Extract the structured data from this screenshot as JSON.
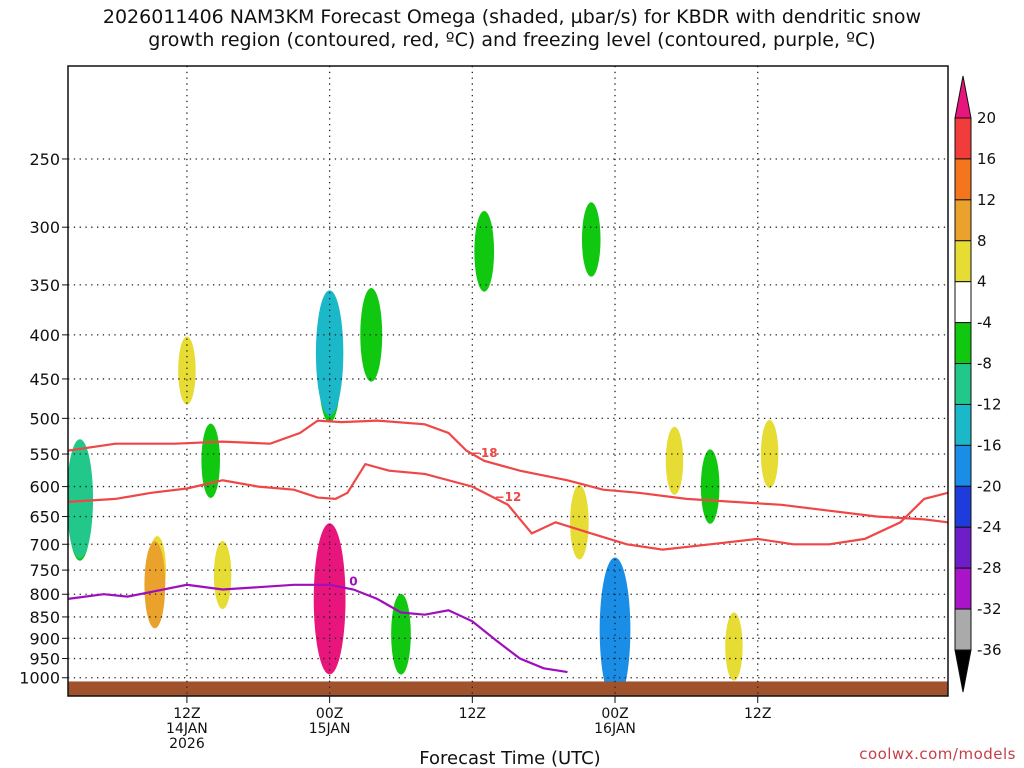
{
  "chart_data": {
    "type": "heatmap",
    "title_line1": "2026011406 NAM3KM Forecast Omega (shaded, µbar/s) for KBDR with dendritic snow",
    "title_line2": "growth region (contoured, red, ºC) and freezing level (contoured, purple, ºC)",
    "xlabel": "Forecast Time (UTC)",
    "ylabel": "",
    "y_scale": "log-pressure",
    "y_reversed": true,
    "xlim": [
      -10,
      64
    ],
    "ylim": [
      1050,
      195
    ],
    "grid": true,
    "x_ticks": [
      {
        "x": 0,
        "labels": [
          "12Z",
          "14JAN",
          "2026"
        ]
      },
      {
        "x": 12,
        "labels": [
          "00Z",
          "15JAN"
        ]
      },
      {
        "x": 24,
        "labels": [
          "12Z"
        ]
      },
      {
        "x": 36,
        "labels": [
          "00Z",
          "16JAN"
        ]
      },
      {
        "x": 48,
        "labels": [
          "12Z"
        ]
      }
    ],
    "y_ticks": [
      250,
      300,
      350,
      400,
      450,
      500,
      550,
      600,
      650,
      700,
      750,
      800,
      850,
      900,
      950,
      1000
    ],
    "colorbar": {
      "ticks": [
        20,
        16,
        12,
        8,
        4,
        -4,
        -8,
        -12,
        -16,
        -20,
        -24,
        -28,
        -32,
        -36
      ],
      "colors": [
        "#e8157c",
        "#f23c3c",
        "#f4761c",
        "#eaa22c",
        "#e6dc34",
        "#ffffff",
        "#10c810",
        "#22c88a",
        "#1ab8c8",
        "#1a8ee6",
        "#1e3cdc",
        "#6e1ec8",
        "#aa14c8",
        "#aaaaaa",
        "#000000"
      ]
    },
    "omega_cells": [
      {
        "x": -9,
        "p": 640,
        "value": -10,
        "color": "#10c810"
      },
      {
        "x": -9,
        "p": 620,
        "value": -13,
        "color": "#22c88a"
      },
      {
        "x": -2.5,
        "p": 750,
        "value": 5,
        "color": "#e6dc34"
      },
      {
        "x": -2.7,
        "p": 780,
        "value": 8,
        "color": "#eaa22c"
      },
      {
        "x": 0,
        "p": 440,
        "value": 5,
        "color": "#e6dc34"
      },
      {
        "x": 2,
        "p": 560,
        "value": -6,
        "color": "#10c810"
      },
      {
        "x": 3,
        "p": 760,
        "value": 5,
        "color": "#e6dc34"
      },
      {
        "x": 12,
        "p": 450,
        "value": -8,
        "color": "#10c810"
      },
      {
        "x": 12,
        "p": 420,
        "value": -14,
        "color": "#1ab8c8"
      },
      {
        "x": 12,
        "p": 820,
        "value": 8,
        "color": "#eaa22c"
      },
      {
        "x": 12,
        "p": 815,
        "value": 12,
        "color": "#f4761c"
      },
      {
        "x": 12,
        "p": 810,
        "value": 18,
        "color": "#e8157c"
      },
      {
        "x": 15.5,
        "p": 400,
        "value": -9,
        "color": "#10c810"
      },
      {
        "x": 18,
        "p": 890,
        "value": -7,
        "color": "#10c810"
      },
      {
        "x": 25,
        "p": 320,
        "value": -7,
        "color": "#10c810"
      },
      {
        "x": 34,
        "p": 310,
        "value": -6,
        "color": "#10c810"
      },
      {
        "x": 33,
        "p": 660,
        "value": 6,
        "color": "#e6dc34"
      },
      {
        "x": 36,
        "p": 880,
        "value": -9,
        "color": "#10c810"
      },
      {
        "x": 36,
        "p": 880,
        "value": -17,
        "color": "#1a8ee6"
      },
      {
        "x": 41,
        "p": 560,
        "value": 5,
        "color": "#e6dc34"
      },
      {
        "x": 44,
        "p": 600,
        "value": -6,
        "color": "#10c810"
      },
      {
        "x": 49,
        "p": 550,
        "value": 5,
        "color": "#e6dc34"
      },
      {
        "x": 46,
        "p": 920,
        "value": 5,
        "color": "#e6dc34"
      }
    ],
    "contours": [
      {
        "value": -18,
        "color": "#ef4747",
        "label": "−18",
        "x": [
          -10,
          -6,
          -1,
          3,
          7,
          9.5,
          11,
          13,
          16,
          20,
          22,
          23.5,
          25,
          28,
          32,
          35,
          38,
          42,
          46,
          50,
          54,
          58,
          62,
          64
        ],
        "p": [
          545,
          535,
          535,
          532,
          535,
          520,
          503,
          505,
          503,
          508,
          520,
          545,
          560,
          575,
          590,
          605,
          610,
          620,
          625,
          630,
          640,
          650,
          655,
          660
        ]
      },
      {
        "value": -12,
        "color": "#ef4747",
        "label": "−12",
        "x": [
          -10,
          -6,
          -3,
          0,
          3,
          6,
          9,
          11,
          12.5,
          13.5,
          15,
          17,
          20,
          24,
          27,
          29,
          31,
          34,
          37,
          40,
          44,
          48,
          51,
          54,
          57,
          60,
          62,
          64
        ],
        "p": [
          625,
          620,
          610,
          603,
          590,
          600,
          605,
          618,
          620,
          610,
          565,
          575,
          580,
          600,
          630,
          680,
          660,
          680,
          700,
          710,
          700,
          690,
          700,
          700,
          690,
          660,
          620,
          610
        ]
      },
      {
        "value": 0,
        "color": "#9e0ebe",
        "label": "0",
        "x": [
          -10,
          -7,
          -5,
          -3,
          0,
          3,
          6,
          9,
          12,
          14,
          16,
          18,
          20,
          22,
          24,
          26,
          28,
          30,
          32
        ],
        "p": [
          810,
          800,
          805,
          795,
          780,
          790,
          785,
          780,
          780,
          790,
          810,
          840,
          845,
          835,
          860,
          905,
          950,
          975,
          985
        ]
      }
    ],
    "ground_level_p": 1010
  },
  "footer": "coolwx.com/models"
}
